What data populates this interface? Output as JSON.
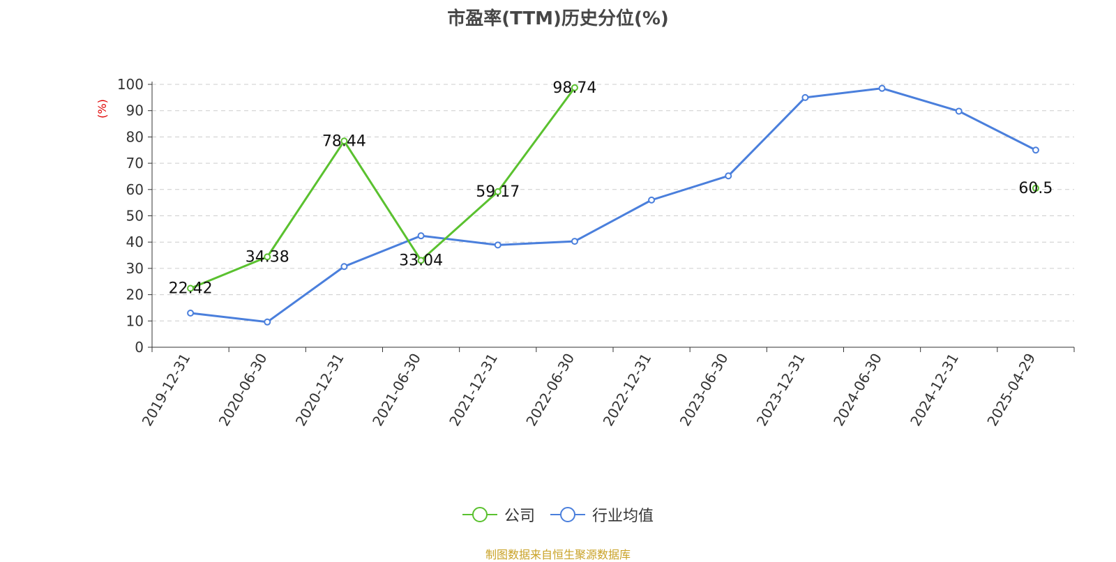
{
  "chart_data": {
    "type": "line",
    "title": "市盈率(TTM)历史分位(%)",
    "ylabel": "(%)",
    "xlabel": "",
    "ylim": [
      0,
      100
    ],
    "yticks": [
      0,
      10,
      20,
      30,
      40,
      50,
      60,
      70,
      80,
      90,
      100
    ],
    "categories": [
      "2019-12-31",
      "2020-06-30",
      "2020-12-31",
      "2021-06-30",
      "2021-12-31",
      "2022-06-30",
      "2022-12-31",
      "2023-06-30",
      "2023-12-31",
      "2024-06-30",
      "2024-12-31",
      "2025-04-29"
    ],
    "grid": true,
    "legend_position": "bottom",
    "series": [
      {
        "name": "公司",
        "color": "#5ac12f",
        "values": [
          22.42,
          34.38,
          78.44,
          33.04,
          59.17,
          98.74,
          null,
          null,
          null,
          null,
          null,
          60.5
        ],
        "labels": [
          "22.42",
          "34.38",
          "78.44",
          "33.04",
          "59.17",
          "98.74",
          null,
          null,
          null,
          null,
          null,
          "60.5"
        ]
      },
      {
        "name": "行业均值",
        "color": "#4a7fdc",
        "values": [
          13,
          9.6,
          30.7,
          42.4,
          38.9,
          40.3,
          56,
          65.2,
          95,
          98.5,
          89.8,
          75
        ]
      }
    ]
  },
  "source": "制图数据来自恒生聚源数据库"
}
